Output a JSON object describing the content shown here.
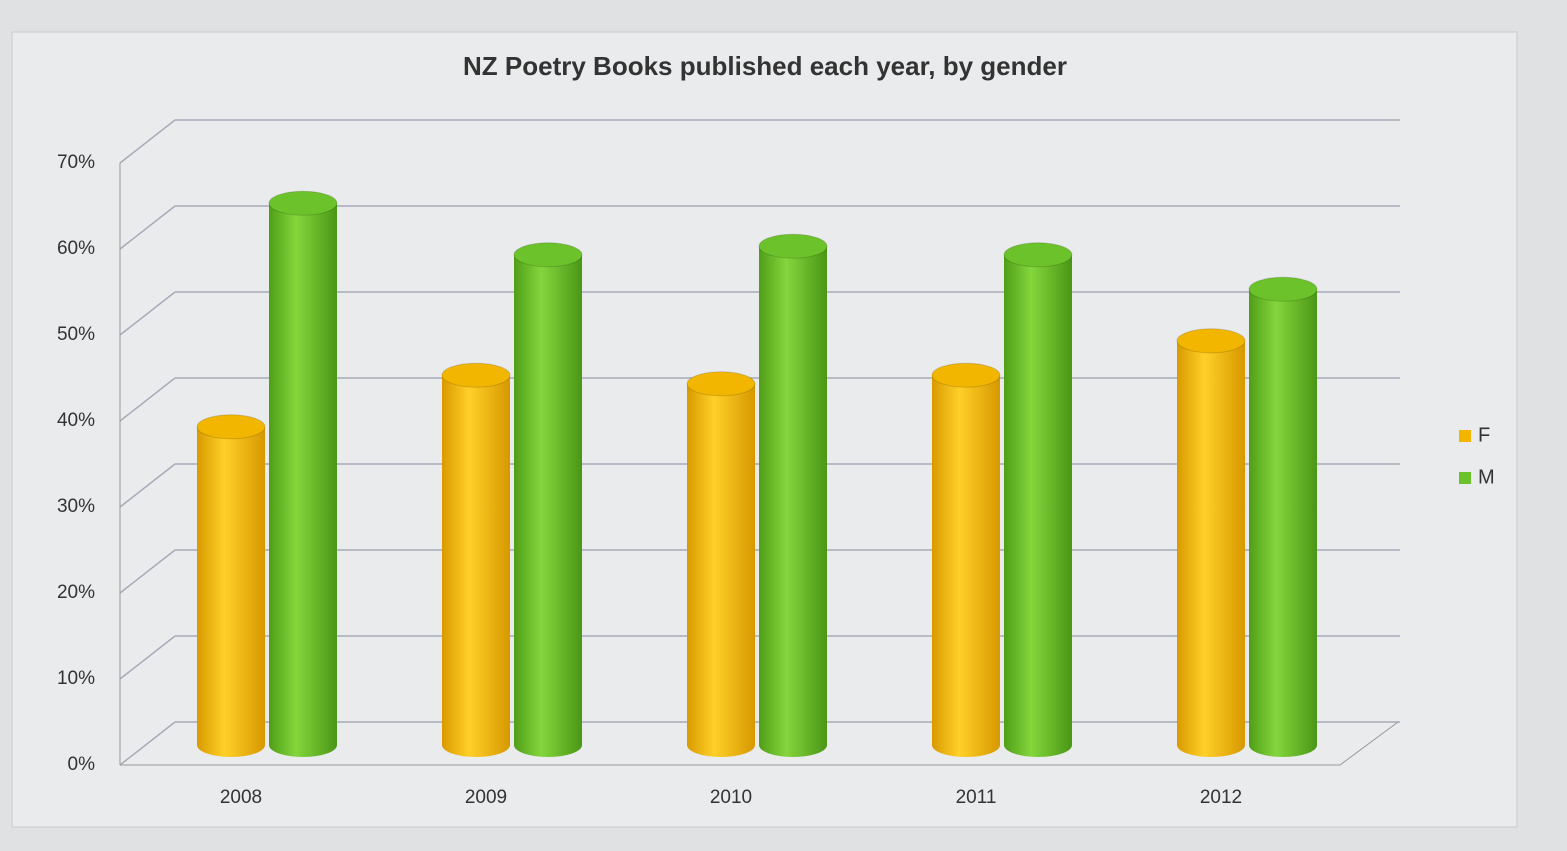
{
  "chart_data": {
    "type": "bar",
    "title": "NZ Poetry Books published each year, by gender",
    "categories": [
      "2008",
      "2009",
      "2010",
      "2011",
      "2012"
    ],
    "series": [
      {
        "name": "F",
        "color": "#f2b600",
        "values": [
          37,
          43,
          42,
          43,
          47
        ]
      },
      {
        "name": "M",
        "color": "#6cc22a",
        "values": [
          63,
          57,
          58,
          57,
          53
        ]
      }
    ],
    "ylim": [
      0,
      70
    ],
    "yticks": [
      {
        "value": 0,
        "label": "0%"
      },
      {
        "value": 10,
        "label": "10%"
      },
      {
        "value": 20,
        "label": "20%"
      },
      {
        "value": 30,
        "label": "30%"
      },
      {
        "value": 40,
        "label": "40%"
      },
      {
        "value": 50,
        "label": "50%"
      },
      {
        "value": 60,
        "label": "60%"
      },
      {
        "value": 70,
        "label": "70%"
      }
    ],
    "grid": true,
    "legend": "right"
  }
}
